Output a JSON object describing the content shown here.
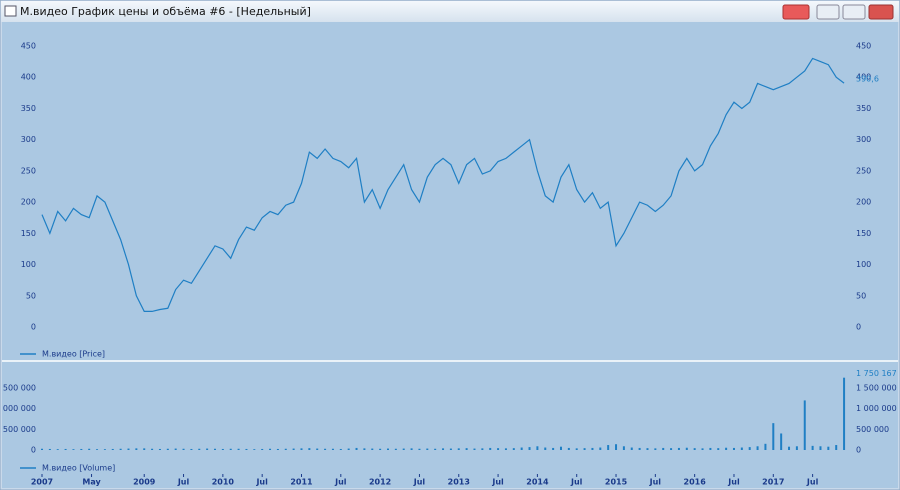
{
  "window": {
    "title": "М.видео График цены и объёма #6 - [Недельный]"
  },
  "chart_data": [
    {
      "type": "line",
      "x": [
        2007.7,
        2007.8,
        2007.9,
        2008.0,
        2008.1,
        2008.2,
        2008.3,
        2008.4,
        2008.5,
        2008.6,
        2008.7,
        2008.8,
        2008.9,
        2009.0,
        2009.1,
        2009.2,
        2009.3,
        2009.4,
        2009.5,
        2009.6,
        2009.7,
        2009.8,
        2009.9,
        2010.0,
        2010.1,
        2010.2,
        2010.3,
        2010.4,
        2010.5,
        2010.6,
        2010.7,
        2010.8,
        2010.9,
        2011.0,
        2011.1,
        2011.2,
        2011.3,
        2011.4,
        2011.5,
        2011.6,
        2011.7,
        2011.8,
        2011.9,
        2012.0,
        2012.1,
        2012.2,
        2012.3,
        2012.4,
        2012.5,
        2012.6,
        2012.7,
        2012.8,
        2012.9,
        2013.0,
        2013.1,
        2013.2,
        2013.3,
        2013.4,
        2013.5,
        2013.6,
        2013.7,
        2013.8,
        2013.9,
        2014.0,
        2014.1,
        2014.2,
        2014.3,
        2014.4,
        2014.5,
        2014.6,
        2014.7,
        2014.8,
        2014.9,
        2015.0,
        2015.1,
        2015.2,
        2015.3,
        2015.4,
        2015.5,
        2015.6,
        2015.7,
        2015.8,
        2015.9,
        2016.0,
        2016.1,
        2016.2,
        2016.3,
        2016.4,
        2016.5,
        2016.6,
        2016.7,
        2016.8,
        2016.9,
        2017.0,
        2017.1,
        2017.2,
        2017.3,
        2017.4,
        2017.5,
        2017.6,
        2017.7,
        2017.8,
        2017.9
      ],
      "series": [
        {
          "name": "М.видео [Price]",
          "color": "#1f7fc4",
          "values": [
            180,
            150,
            185,
            170,
            190,
            180,
            175,
            210,
            200,
            170,
            140,
            100,
            50,
            25,
            25,
            28,
            30,
            60,
            75,
            70,
            90,
            110,
            130,
            125,
            110,
            140,
            160,
            155,
            175,
            185,
            180,
            195,
            200,
            230,
            280,
            270,
            285,
            270,
            265,
            255,
            270,
            200,
            220,
            190,
            220,
            240,
            260,
            220,
            200,
            240,
            260,
            270,
            260,
            230,
            260,
            270,
            245,
            250,
            265,
            270,
            280,
            290,
            300,
            250,
            210,
            200,
            240,
            260,
            220,
            200,
            215,
            190,
            200,
            130,
            150,
            175,
            200,
            195,
            185,
            195,
            210,
            250,
            270,
            250,
            260,
            290,
            310,
            340,
            360,
            350,
            360,
            390,
            385,
            380,
            385,
            390,
            400,
            410,
            430,
            425,
            420,
            400,
            390.6
          ]
        }
      ],
      "annotations": [
        {
          "x": 2017.9,
          "value": 390.6,
          "label": "390,6"
        }
      ],
      "xlim": [
        2007.7,
        2017.95
      ],
      "ylim": [
        -20,
        470
      ],
      "yticks": [
        0,
        50,
        100,
        150,
        200,
        250,
        300,
        350,
        400,
        450
      ]
    },
    {
      "type": "bar",
      "x": [
        2007.7,
        2007.8,
        2007.9,
        2008.0,
        2008.1,
        2008.2,
        2008.3,
        2008.4,
        2008.5,
        2008.6,
        2008.7,
        2008.8,
        2008.9,
        2009.0,
        2009.1,
        2009.2,
        2009.3,
        2009.4,
        2009.5,
        2009.6,
        2009.7,
        2009.8,
        2009.9,
        2010.0,
        2010.1,
        2010.2,
        2010.3,
        2010.4,
        2010.5,
        2010.6,
        2010.7,
        2010.8,
        2010.9,
        2011.0,
        2011.1,
        2011.2,
        2011.3,
        2011.4,
        2011.5,
        2011.6,
        2011.7,
        2011.8,
        2011.9,
        2012.0,
        2012.1,
        2012.2,
        2012.3,
        2012.4,
        2012.5,
        2012.6,
        2012.7,
        2012.8,
        2012.9,
        2013.0,
        2013.1,
        2013.2,
        2013.3,
        2013.4,
        2013.5,
        2013.6,
        2013.7,
        2013.8,
        2013.9,
        2014.0,
        2014.1,
        2014.2,
        2014.3,
        2014.4,
        2014.5,
        2014.6,
        2014.7,
        2014.8,
        2014.9,
        2015.0,
        2015.1,
        2015.2,
        2015.3,
        2015.4,
        2015.5,
        2015.6,
        2015.7,
        2015.8,
        2015.9,
        2016.0,
        2016.1,
        2016.2,
        2016.3,
        2016.4,
        2016.5,
        2016.6,
        2016.7,
        2016.8,
        2016.9,
        2017.0,
        2017.1,
        2017.2,
        2017.3,
        2017.4,
        2017.5,
        2017.6,
        2017.7,
        2017.8,
        2017.9
      ],
      "series": [
        {
          "name": "М.видео [Volume]",
          "color": "#1f7fc4",
          "values": [
            30000,
            25000,
            20000,
            25000,
            20000,
            25000,
            30000,
            20000,
            20000,
            25000,
            30000,
            35000,
            40000,
            40000,
            30000,
            25000,
            30000,
            35000,
            30000,
            25000,
            30000,
            35000,
            30000,
            25000,
            30000,
            30000,
            25000,
            20000,
            25000,
            30000,
            25000,
            30000,
            35000,
            40000,
            45000,
            35000,
            30000,
            30000,
            25000,
            35000,
            50000,
            40000,
            35000,
            30000,
            35000,
            30000,
            35000,
            40000,
            30000,
            35000,
            30000,
            40000,
            35000,
            40000,
            45000,
            35000,
            40000,
            50000,
            45000,
            40000,
            45000,
            60000,
            70000,
            90000,
            60000,
            50000,
            80000,
            50000,
            40000,
            45000,
            50000,
            60000,
            120000,
            140000,
            90000,
            60000,
            50000,
            45000,
            40000,
            50000,
            45000,
            50000,
            55000,
            45000,
            40000,
            50000,
            45000,
            55000,
            50000,
            60000,
            70000,
            90000,
            150000,
            650000,
            400000,
            80000,
            90000,
            1200000,
            100000,
            90000,
            80000,
            120000,
            1750167
          ]
        }
      ],
      "annotations": [
        {
          "x": 2017.9,
          "value": 1750167,
          "label": "1 750 167"
        }
      ],
      "xlim": [
        2007.7,
        2017.95
      ],
      "ylim": [
        0,
        1900000
      ],
      "yticks": [
        {
          "value": 0,
          "label": "0"
        },
        {
          "value": 500000,
          "label": "500 000"
        },
        {
          "value": 1000000,
          "label": "1 000 000"
        },
        {
          "value": 1500000,
          "label": "1 500 000"
        }
      ],
      "xticks": [
        {
          "value": 2007.7,
          "label": "2007"
        },
        {
          "value": 2008.33,
          "label": "May"
        },
        {
          "value": 2009,
          "label": "2009"
        },
        {
          "value": 2009.5,
          "label": "Jul"
        },
        {
          "value": 2010,
          "label": "2010"
        },
        {
          "value": 2010.5,
          "label": "Jul"
        },
        {
          "value": 2011,
          "label": "2011"
        },
        {
          "value": 2011.5,
          "label": "Jul"
        },
        {
          "value": 2012,
          "label": "2012"
        },
        {
          "value": 2012.5,
          "label": "Jul"
        },
        {
          "value": 2013,
          "label": "2013"
        },
        {
          "value": 2013.5,
          "label": "Jul"
        },
        {
          "value": 2014,
          "label": "2014"
        },
        {
          "value": 2014.5,
          "label": "Jul"
        },
        {
          "value": 2015,
          "label": "2015"
        },
        {
          "value": 2015.5,
          "label": "Jul"
        },
        {
          "value": 2016,
          "label": "2016"
        },
        {
          "value": 2016.5,
          "label": "Jul"
        },
        {
          "value": 2017,
          "label": "2017"
        },
        {
          "value": 2017.5,
          "label": "Jul"
        }
      ]
    }
  ]
}
